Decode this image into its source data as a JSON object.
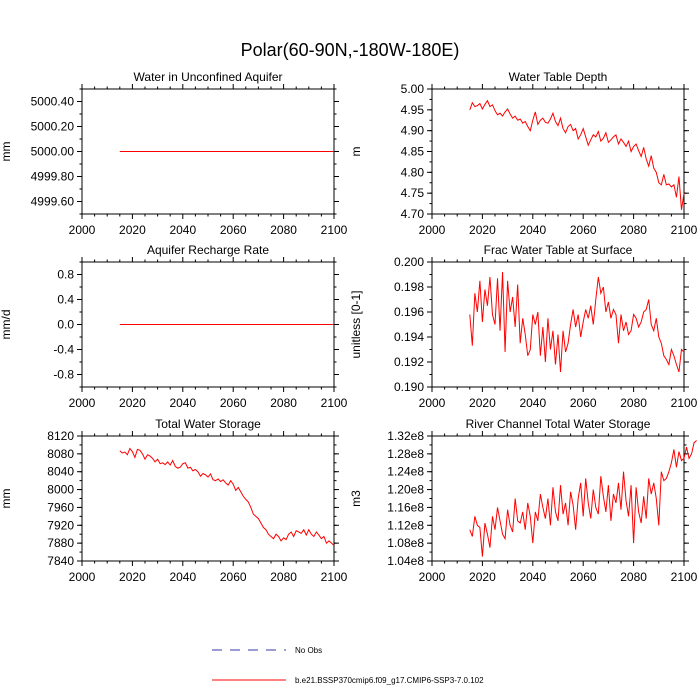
{
  "figure": {
    "title": "Polar(60-90N,-180W-180E)",
    "line_color": "#ff0000",
    "obs_color": "#3a3aa8"
  },
  "legend": {
    "obs_label": "No Obs",
    "model_label": "b.e21.BSSP370cmip6.f09_g17.CMIP6-SSP3-7.0.102"
  },
  "chart_data": [
    {
      "type": "line",
      "title": "Water in Unconfined Aquifer",
      "ylabel": "mm",
      "xlim": [
        2000,
        2100
      ],
      "ylim": [
        4999.5,
        5000.5
      ],
      "xticks": [
        "2000",
        "2020",
        "2040",
        "2060",
        "2080",
        "2100"
      ],
      "ytick_values": [
        4999.6,
        4999.8,
        5000.0,
        5000.2,
        5000.4
      ],
      "ytick_labels": [
        "4999.60",
        "4999.80",
        "5000.00",
        "5000.20",
        "5000.40"
      ],
      "x_start": 2015,
      "values": [
        5000,
        5000,
        5000,
        5000,
        5000,
        5000,
        5000,
        5000,
        5000,
        5000,
        5000,
        5000,
        5000,
        5000,
        5000,
        5000,
        5000,
        5000,
        5000,
        5000,
        5000,
        5000,
        5000,
        5000,
        5000,
        5000,
        5000,
        5000,
        5000,
        5000,
        5000,
        5000,
        5000,
        5000,
        5000,
        5000,
        5000,
        5000,
        5000,
        5000,
        5000,
        5000,
        5000,
        5000,
        5000,
        5000,
        5000,
        5000,
        5000,
        5000,
        5000,
        5000,
        5000,
        5000,
        5000,
        5000,
        5000,
        5000,
        5000,
        5000,
        5000,
        5000,
        5000,
        5000,
        5000,
        5000,
        5000,
        5000,
        5000,
        5000,
        5000,
        5000,
        5000,
        5000,
        5000,
        5000,
        5000,
        5000,
        5000,
        5000,
        5000,
        5000,
        5000,
        5000,
        5000,
        5000
      ]
    },
    {
      "type": "line",
      "title": "Water Table Depth",
      "ylabel": "m",
      "xlim": [
        2000,
        2100
      ],
      "ylim": [
        4.7,
        5.0
      ],
      "xticks": [
        "2000",
        "2020",
        "2040",
        "2060",
        "2080",
        "2100"
      ],
      "ytick_values": [
        4.7,
        4.75,
        4.8,
        4.85,
        4.9,
        4.95,
        5.0
      ],
      "ytick_labels": [
        "4.70",
        "4.75",
        "4.80",
        "4.85",
        "4.90",
        "4.95",
        "5.00"
      ],
      "x_start": 2015,
      "values": [
        4.95,
        4.967,
        4.958,
        4.96,
        4.965,
        4.952,
        4.963,
        4.972,
        4.958,
        4.962,
        4.948,
        4.938,
        4.942,
        4.935,
        4.945,
        4.952,
        4.94,
        4.93,
        4.935,
        4.925,
        4.928,
        4.918,
        4.922,
        4.91,
        4.9,
        4.925,
        4.945,
        4.915,
        4.925,
        4.93,
        4.92,
        4.918,
        4.928,
        4.942,
        4.922,
        4.912,
        4.93,
        4.905,
        4.895,
        4.91,
        4.915,
        4.9,
        4.905,
        4.88,
        4.89,
        4.905,
        4.885,
        4.865,
        4.878,
        4.89,
        4.885,
        4.898,
        4.875,
        4.882,
        4.895,
        4.872,
        4.878,
        4.885,
        4.89,
        4.868,
        4.88,
        4.872,
        4.862,
        4.875,
        4.85,
        4.862,
        4.868,
        4.852,
        4.838,
        4.86,
        4.832,
        4.815,
        4.84,
        4.81,
        4.8,
        4.775,
        4.77,
        4.795,
        4.77,
        4.772,
        4.765,
        4.77,
        4.74,
        4.79,
        4.71,
        4.75
      ]
    },
    {
      "type": "line",
      "title": "Aquifer Recharge Rate",
      "ylabel": "mm/d",
      "xlim": [
        2000,
        2100
      ],
      "ylim": [
        -1.0,
        1.0
      ],
      "xticks": [
        "2000",
        "2020",
        "2040",
        "2060",
        "2080",
        "2100"
      ],
      "ytick_values": [
        -0.8,
        -0.4,
        0.0,
        0.4,
        0.8
      ],
      "ytick_labels": [
        "-0.8",
        "-0.4",
        "0.0",
        "0.4",
        "0.8"
      ],
      "x_start": 2015,
      "values": [
        0,
        0,
        0,
        0,
        0,
        0,
        0,
        0,
        0,
        0,
        0,
        0,
        0,
        0,
        0,
        0,
        0,
        0,
        0,
        0,
        0,
        0,
        0,
        0,
        0,
        0,
        0,
        0,
        0,
        0,
        0,
        0,
        0,
        0,
        0,
        0,
        0,
        0,
        0,
        0,
        0,
        0,
        0,
        0,
        0,
        0,
        0,
        0,
        0,
        0,
        0,
        0,
        0,
        0,
        0,
        0,
        0,
        0,
        0,
        0,
        0,
        0,
        0,
        0,
        0,
        0,
        0,
        0,
        0,
        0,
        0,
        0,
        0,
        0,
        0,
        0,
        0,
        0,
        0,
        0,
        0,
        0,
        0,
        0,
        0,
        0
      ]
    },
    {
      "type": "line",
      "title": "Frac Water Table at Surface",
      "ylabel": "unitless [0-1]",
      "xlim": [
        2000,
        2100
      ],
      "ylim": [
        0.19,
        0.2
      ],
      "xticks": [
        "2000",
        "2020",
        "2040",
        "2060",
        "2080",
        "2100"
      ],
      "ytick_values": [
        0.19,
        0.192,
        0.194,
        0.196,
        0.198,
        0.2
      ],
      "ytick_labels": [
        "0.190",
        "0.192",
        "0.194",
        "0.196",
        "0.198",
        "0.200"
      ],
      "x_start": 2015,
      "values": [
        0.1958,
        0.1933,
        0.1975,
        0.196,
        0.1985,
        0.1952,
        0.1978,
        0.1965,
        0.1988,
        0.1958,
        0.195,
        0.1987,
        0.1945,
        0.1992,
        0.1928,
        0.1985,
        0.196,
        0.1972,
        0.1948,
        0.1982,
        0.1935,
        0.1955,
        0.1942,
        0.1925,
        0.193,
        0.1958,
        0.195,
        0.196,
        0.1925,
        0.1948,
        0.192,
        0.1955,
        0.193,
        0.1945,
        0.1918,
        0.1942,
        0.1912,
        0.1945,
        0.1928,
        0.1935,
        0.195,
        0.1962,
        0.1948,
        0.1958,
        0.194,
        0.1952,
        0.1962,
        0.1955,
        0.1965,
        0.195,
        0.197,
        0.1988,
        0.1975,
        0.198,
        0.196,
        0.1968,
        0.1955,
        0.1962,
        0.1958,
        0.1935,
        0.1958,
        0.1945,
        0.1952,
        0.1942,
        0.1945,
        0.1958,
        0.1955,
        0.1948,
        0.1952,
        0.196,
        0.1962,
        0.197,
        0.195,
        0.1945,
        0.1955,
        0.194,
        0.1935,
        0.1925,
        0.1922,
        0.1918,
        0.193,
        0.1925,
        0.1918,
        0.1912,
        0.193,
        0.1928
      ]
    },
    {
      "type": "line",
      "title": "Total Water Storage",
      "ylabel": "mm",
      "xlim": [
        2000,
        2100
      ],
      "ylim": [
        7840,
        8120
      ],
      "xticks": [
        "2000",
        "2020",
        "2040",
        "2060",
        "2080",
        "2100"
      ],
      "ytick_values": [
        7840,
        7880,
        7920,
        7960,
        8000,
        8040,
        8080,
        8120
      ],
      "ytick_labels": [
        "7840",
        "7880",
        "7920",
        "7960",
        "8000",
        "8040",
        "8080",
        "8120"
      ],
      "x_start": 2015,
      "values": [
        8087,
        8082,
        8084,
        8078,
        8092,
        8085,
        8072,
        8090,
        8088,
        8080,
        8068,
        8078,
        8075,
        8070,
        8062,
        8068,
        8058,
        8060,
        8056,
        8062,
        8055,
        8065,
        8052,
        8048,
        8050,
        8058,
        8060,
        8048,
        8050,
        8042,
        8045,
        8040,
        8030,
        8036,
        8033,
        8028,
        8035,
        8022,
        8020,
        8024,
        8018,
        8022,
        8015,
        8010,
        8020,
        8012,
        7998,
        8005,
        7995,
        7985,
        7978,
        7972,
        7960,
        7945,
        7940,
        7935,
        7925,
        7915,
        7910,
        7900,
        7895,
        7890,
        7900,
        7895,
        7885,
        7892,
        7888,
        7900,
        7905,
        7895,
        7908,
        7905,
        7902,
        7910,
        7898,
        7910,
        7900,
        7895,
        7905,
        7898,
        7890,
        7895,
        7880,
        7885,
        7880,
        7875
      ]
    },
    {
      "type": "line",
      "title": "River Channel Total Water Storage",
      "ylabel": "m3",
      "xlim": [
        2000,
        2100
      ],
      "ylim": [
        104000000,
        132000000
      ],
      "xticks": [
        "2000",
        "2020",
        "2040",
        "2060",
        "2080",
        "2100"
      ],
      "ytick_values": [
        104000000,
        108000000,
        112000000,
        116000000,
        120000000,
        124000000,
        128000000,
        132000000
      ],
      "ytick_labels": [
        "1.04e8",
        "1.08e8",
        "1.12e8",
        "1.16e8",
        "1.20e8",
        "1.24e8",
        "1.28e8",
        "1.32e8"
      ],
      "x_start": 2015,
      "values": [
        111000000,
        109500000,
        114000000,
        112000000,
        111500000,
        105000000,
        112500000,
        110000000,
        107000000,
        114000000,
        111000000,
        116000000,
        113000000,
        110000000,
        109000000,
        115500000,
        112000000,
        110500000,
        118000000,
        113000000,
        112500000,
        115000000,
        111000000,
        117000000,
        114000000,
        108000000,
        115000000,
        113000000,
        119000000,
        116000000,
        113500000,
        118000000,
        112000000,
        120500000,
        115000000,
        113000000,
        121000000,
        114500000,
        117000000,
        112000000,
        119500000,
        116500000,
        111000000,
        118000000,
        121500000,
        114000000,
        122500000,
        117000000,
        113500000,
        120000000,
        116000000,
        114500000,
        123000000,
        118500000,
        115000000,
        121000000,
        113000000,
        119000000,
        117000000,
        121500000,
        115500000,
        124000000,
        117500000,
        114000000,
        121000000,
        108000000,
        120500000,
        115000000,
        112500000,
        118500000,
        113500000,
        122500000,
        119000000,
        121500000,
        118000000,
        112000000,
        124000000,
        122000000,
        122500000,
        124000000,
        126000000,
        129000000,
        125000000,
        128500000,
        126500000,
        127000000,
        129500000,
        127000000,
        128000000,
        130500000,
        131000000
      ]
    }
  ]
}
